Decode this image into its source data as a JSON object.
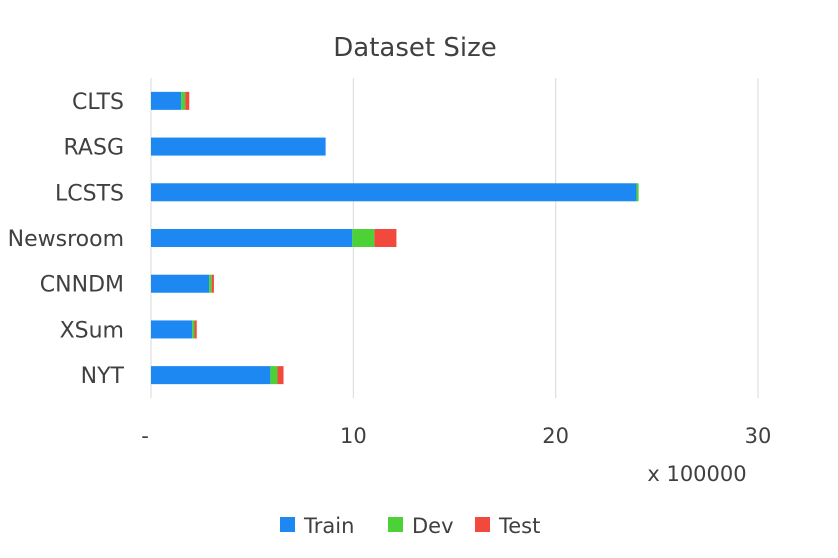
{
  "chart_data": {
    "type": "bar",
    "orientation": "horizontal",
    "stacked": true,
    "title": "Dataset Size",
    "xlabel": "",
    "ylabel": "",
    "x_unit_label": "x 100000",
    "categories": [
      "CLTS",
      "RASG",
      "LCSTS",
      "Newsroom",
      "CNNDM",
      "XSum",
      "NYT"
    ],
    "series": [
      {
        "name": "Train",
        "color": "#1d87f2",
        "values": [
          1.49,
          8.63,
          24.0,
          9.95,
          2.87,
          2.04,
          5.9
        ]
      },
      {
        "name": "Dev",
        "color": "#4cd137",
        "values": [
          0.2,
          0.0,
          0.1,
          1.09,
          0.13,
          0.11,
          0.35
        ]
      },
      {
        "name": "Test",
        "color": "#f2493f",
        "values": [
          0.2,
          0.0,
          0.0,
          1.09,
          0.11,
          0.11,
          0.3
        ]
      }
    ],
    "xlim": [
      0,
      30
    ],
    "x_ticks": [
      {
        "value": 0,
        "label": "-"
      },
      {
        "value": 10,
        "label": "10"
      },
      {
        "value": 20,
        "label": "20"
      },
      {
        "value": 30,
        "label": "30"
      }
    ],
    "grid": true,
    "legend_position": "bottom",
    "text_color": "#404040",
    "grid_color": "#d9d9d9"
  }
}
